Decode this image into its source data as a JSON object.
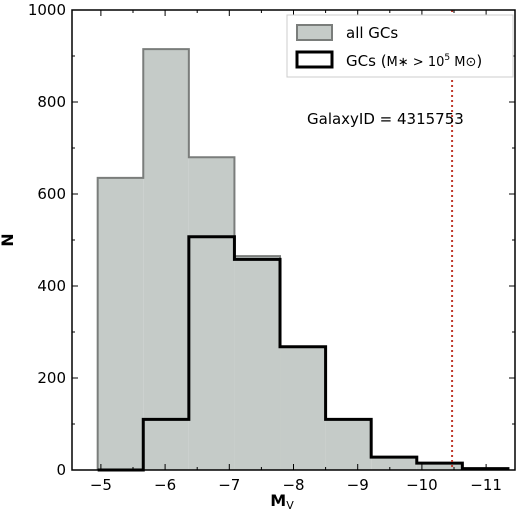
{
  "chart_data": {
    "type": "histogram",
    "title": "",
    "xlabel": "M",
    "xlabel_sub": "V",
    "ylabel": "N",
    "xlim": [
      -4.55,
      -11.45
    ],
    "ylim": [
      0,
      1000
    ],
    "x_ticks": [
      -5,
      -6,
      -7,
      -8,
      -9,
      -10,
      -11
    ],
    "x_tick_labels": [
      "−5",
      "−6",
      "−7",
      "−8",
      "−9",
      "−10",
      "−11"
    ],
    "y_ticks": [
      0,
      200,
      400,
      600,
      800,
      1000
    ],
    "y_tick_labels": [
      "0",
      "200",
      "400",
      "600",
      "800",
      "1000"
    ],
    "bin_edges": [
      -4.95,
      -5.66,
      -6.37,
      -7.08,
      -7.79,
      -8.5,
      -9.21,
      -9.92,
      -10.63,
      -11.34
    ],
    "series": [
      {
        "name": "all GCs",
        "style": "filled",
        "fill": "#c5cbc8",
        "edge": "#7a7d7b",
        "values": [
          635,
          915,
          680,
          465,
          268,
          110,
          28,
          15,
          3
        ]
      },
      {
        "name": "GCs",
        "style": "step",
        "edge": "#000000",
        "values": [
          0,
          110,
          507,
          458,
          268,
          110,
          28,
          15,
          3
        ]
      }
    ],
    "vline": {
      "x": -10.47,
      "color": "#c0392b",
      "style": "dotted"
    },
    "annotation": "GalaxyID = 4315753",
    "legend": {
      "position": "top-right",
      "entries": [
        "all GCs",
        "GCs"
      ],
      "second_entry_math": "M∗ > 10",
      "second_entry_exp": "5",
      "second_entry_unit": "M⊙"
    }
  }
}
